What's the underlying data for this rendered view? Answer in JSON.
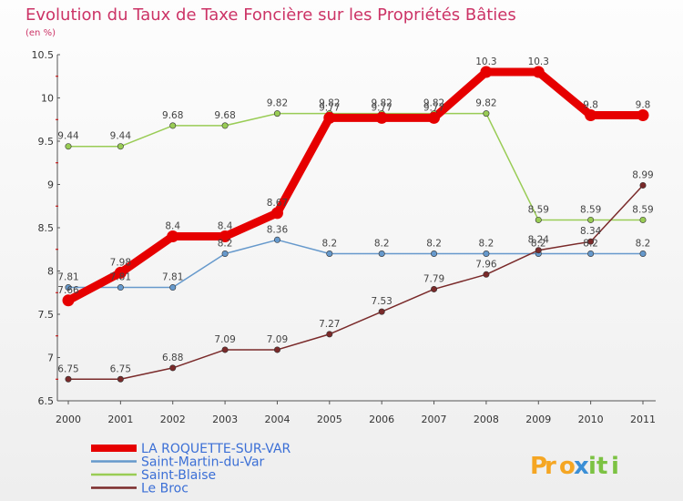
{
  "chart_data": {
    "type": "line",
    "title": "Evolution du Taux de Taxe Foncière sur les Propriétés Bâties",
    "subtitle": "(en %)",
    "xlabel": "",
    "ylabel": "",
    "ylim": [
      6.5,
      10.5
    ],
    "yticks": [
      6.5,
      7,
      7.5,
      8,
      8.5,
      9,
      9.5,
      10,
      10.5
    ],
    "categories": [
      "2000",
      "2001",
      "2002",
      "2003",
      "2004",
      "2005",
      "2006",
      "2007",
      "2008",
      "2009",
      "2010",
      "2011"
    ],
    "series": [
      {
        "name": "LA ROQUETTE-SUR-VAR",
        "color": "#e60000",
        "width": 9,
        "values": [
          7.66,
          7.98,
          8.4,
          8.4,
          8.67,
          9.77,
          9.77,
          9.77,
          10.3,
          10.3,
          9.8,
          9.8
        ],
        "labels": [
          "7.66",
          "7.98",
          "8.4",
          "8.4",
          "8.67",
          "9.77",
          "9.77",
          "9.77",
          "10.3",
          "10.3",
          "9.8",
          "9.8"
        ]
      },
      {
        "name": "Saint-Martin-du-Var",
        "color": "#6699cc",
        "width": 1.5,
        "values": [
          7.81,
          7.81,
          7.81,
          8.2,
          8.36,
          8.2,
          8.2,
          8.2,
          8.2,
          8.2,
          8.2,
          8.2
        ],
        "labels": [
          "7.81",
          "7.81",
          "7.81",
          "8.2",
          "8.36",
          "8.2",
          "8.2",
          "8.2",
          "8.2",
          "8.2",
          "8.2",
          "8.2"
        ]
      },
      {
        "name": "Saint-Blaise",
        "color": "#99cc55",
        "width": 1.5,
        "values": [
          9.44,
          9.44,
          9.68,
          9.68,
          9.82,
          9.82,
          9.82,
          9.82,
          9.82,
          8.59,
          8.59,
          8.59
        ],
        "labels": [
          "9.44",
          "9.44",
          "9.68",
          "9.68",
          "9.82",
          "9.82",
          "9.82",
          "9.82",
          "9.82",
          "8.59",
          "8.59",
          "8.59"
        ]
      },
      {
        "name": "Le Broc",
        "color": "#7a2a2a",
        "width": 1.5,
        "values": [
          6.75,
          6.75,
          6.88,
          7.09,
          7.09,
          7.27,
          7.53,
          7.79,
          7.96,
          8.24,
          8.34,
          8.99
        ],
        "labels": [
          "6.75",
          "6.75",
          "6.88",
          "7.09",
          "7.09",
          "7.27",
          "7.53",
          "7.79",
          "7.96",
          "8.24",
          "8.34",
          "8.99"
        ]
      }
    ],
    "legend": "bottom-left",
    "grid": false
  },
  "colors": {
    "title": "#cc3366",
    "axis": "#555555",
    "labels": "#444444"
  },
  "logo": {
    "text": "Proxiti",
    "letter_colors": [
      "#f5a623",
      "#f5a623",
      "#f5a623",
      "#3b8fd6",
      "#7cc243",
      "#7cc243",
      "#7cc243"
    ]
  }
}
